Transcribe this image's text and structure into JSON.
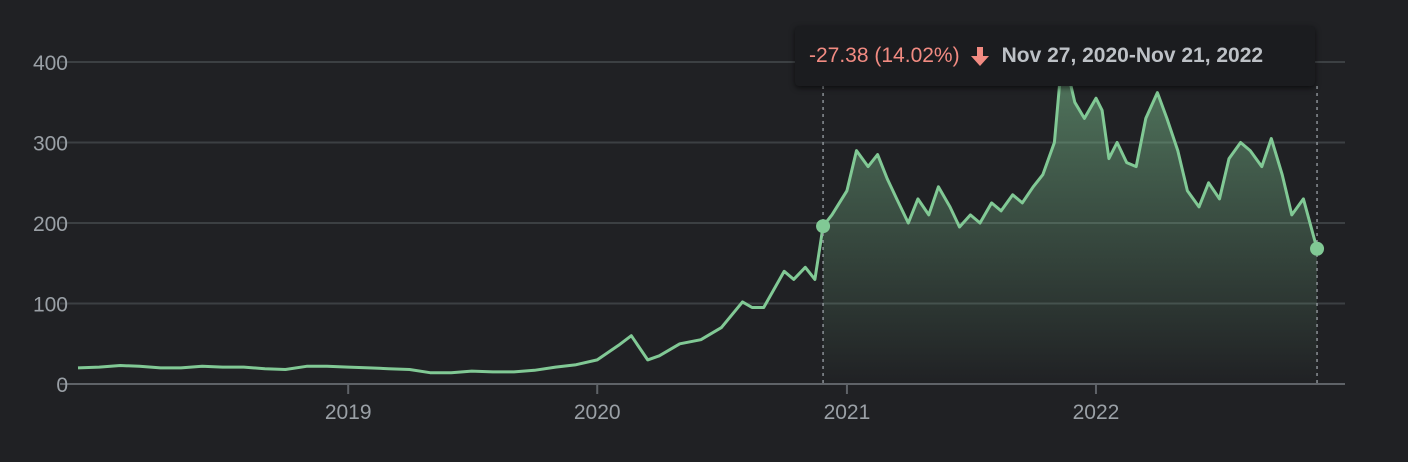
{
  "tooltip": {
    "change": "-27.38 (14.02%)",
    "range": "Nov 27, 2020-Nov 21, 2022",
    "direction": "down"
  },
  "colors": {
    "background": "#202124",
    "line": "#81c995",
    "negative": "#f28b82",
    "text": "#9aa0a6",
    "grid": "#3c4043"
  },
  "chart_data": {
    "type": "area",
    "title": "",
    "xlabel": "",
    "ylabel": "",
    "ylim": [
      0,
      400
    ],
    "yticks": [
      0,
      100,
      200,
      300,
      400
    ],
    "xticks": [
      {
        "x": "2019-01-01",
        "label": "2019"
      },
      {
        "x": "2020-01-01",
        "label": "2020"
      },
      {
        "x": "2021-01-01",
        "label": "2021"
      },
      {
        "x": "2022-01-01",
        "label": "2022"
      }
    ],
    "xlim": [
      "2017-12-01",
      "2022-12-10"
    ],
    "grid": true,
    "selection": {
      "start": "2020-11-27",
      "end": "2022-11-21",
      "start_value": 196,
      "end_value": 168
    },
    "series": [
      {
        "points": [
          [
            "2017-12-01",
            20
          ],
          [
            "2018-01-01",
            21
          ],
          [
            "2018-02-01",
            23
          ],
          [
            "2018-03-01",
            22
          ],
          [
            "2018-04-01",
            20
          ],
          [
            "2018-05-01",
            20
          ],
          [
            "2018-06-01",
            22
          ],
          [
            "2018-07-01",
            21
          ],
          [
            "2018-08-01",
            21
          ],
          [
            "2018-09-01",
            19
          ],
          [
            "2018-10-01",
            18
          ],
          [
            "2018-11-01",
            22
          ],
          [
            "2018-12-01",
            22
          ],
          [
            "2019-01-01",
            21
          ],
          [
            "2019-02-01",
            20
          ],
          [
            "2019-03-01",
            19
          ],
          [
            "2019-04-01",
            18
          ],
          [
            "2019-05-01",
            14
          ],
          [
            "2019-06-01",
            14
          ],
          [
            "2019-07-01",
            16
          ],
          [
            "2019-08-01",
            15
          ],
          [
            "2019-09-01",
            15
          ],
          [
            "2019-10-01",
            17
          ],
          [
            "2019-11-01",
            21
          ],
          [
            "2019-12-01",
            24
          ],
          [
            "2020-01-01",
            30
          ],
          [
            "2020-02-01",
            48
          ],
          [
            "2020-02-20",
            60
          ],
          [
            "2020-03-15",
            30
          ],
          [
            "2020-04-01",
            35
          ],
          [
            "2020-05-01",
            50
          ],
          [
            "2020-06-01",
            55
          ],
          [
            "2020-07-01",
            70
          ],
          [
            "2020-08-01",
            102
          ],
          [
            "2020-08-15",
            95
          ],
          [
            "2020-09-01",
            95
          ],
          [
            "2020-10-01",
            140
          ],
          [
            "2020-10-15",
            130
          ],
          [
            "2020-11-01",
            145
          ],
          [
            "2020-11-15",
            130
          ],
          [
            "2020-11-27",
            196
          ],
          [
            "2020-12-10",
            210
          ],
          [
            "2021-01-01",
            240
          ],
          [
            "2021-01-15",
            290
          ],
          [
            "2021-02-01",
            270
          ],
          [
            "2021-02-15",
            285
          ],
          [
            "2021-03-01",
            255
          ],
          [
            "2021-03-15",
            230
          ],
          [
            "2021-04-01",
            200
          ],
          [
            "2021-04-15",
            230
          ],
          [
            "2021-05-01",
            210
          ],
          [
            "2021-05-15",
            245
          ],
          [
            "2021-06-01",
            220
          ],
          [
            "2021-06-15",
            195
          ],
          [
            "2021-07-01",
            210
          ],
          [
            "2021-07-15",
            200
          ],
          [
            "2021-08-01",
            225
          ],
          [
            "2021-08-15",
            215
          ],
          [
            "2021-09-01",
            235
          ],
          [
            "2021-09-15",
            225
          ],
          [
            "2021-10-01",
            245
          ],
          [
            "2021-10-15",
            260
          ],
          [
            "2021-11-01",
            300
          ],
          [
            "2021-11-10",
            385
          ],
          [
            "2021-11-20",
            390
          ],
          [
            "2021-12-01",
            350
          ],
          [
            "2021-12-15",
            330
          ],
          [
            "2022-01-01",
            355
          ],
          [
            "2022-01-10",
            340
          ],
          [
            "2022-01-20",
            280
          ],
          [
            "2022-02-01",
            300
          ],
          [
            "2022-02-15",
            275
          ],
          [
            "2022-03-01",
            270
          ],
          [
            "2022-03-15",
            330
          ],
          [
            "2022-04-01",
            362
          ],
          [
            "2022-04-15",
            330
          ],
          [
            "2022-05-01",
            290
          ],
          [
            "2022-05-15",
            240
          ],
          [
            "2022-06-01",
            220
          ],
          [
            "2022-06-15",
            250
          ],
          [
            "2022-07-01",
            230
          ],
          [
            "2022-07-15",
            280
          ],
          [
            "2022-08-01",
            300
          ],
          [
            "2022-08-15",
            290
          ],
          [
            "2022-09-01",
            270
          ],
          [
            "2022-09-15",
            305
          ],
          [
            "2022-10-01",
            260
          ],
          [
            "2022-10-15",
            210
          ],
          [
            "2022-11-01",
            230
          ],
          [
            "2022-11-21",
            168
          ]
        ]
      }
    ]
  }
}
